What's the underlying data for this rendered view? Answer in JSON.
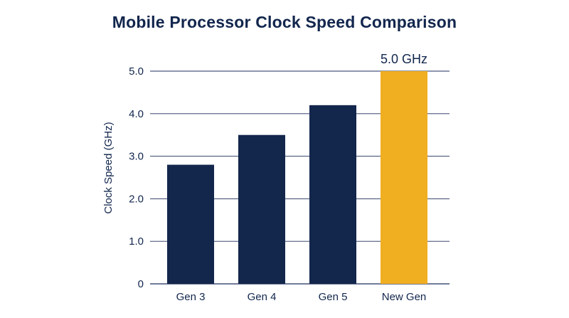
{
  "colors": {
    "bar_default": "#13264c",
    "bar_highlight": "#f0ae21",
    "text": "#12264d",
    "grid": "#1f2f5c"
  },
  "chart_data": {
    "type": "bar",
    "title": "Mobile Processor Clock Speed Comparison",
    "xlabel": "",
    "ylabel": "Clock Speed (GHz)",
    "categories": [
      "Gen 3",
      "Gen 4",
      "Gen 5",
      "New Gen"
    ],
    "values": [
      2.8,
      3.5,
      4.2,
      5.0
    ],
    "highlight_index": 3,
    "data_labels": [
      "",
      "",
      "",
      "5.0 GHz"
    ],
    "ylim": [
      0,
      5
    ],
    "yticks": [
      0,
      1,
      2,
      3,
      4,
      5
    ],
    "ytick_labels": [
      "0",
      "1.0",
      "2.0",
      "3.0",
      "4.0",
      "5.0"
    ],
    "grid": true,
    "legend": "none"
  }
}
